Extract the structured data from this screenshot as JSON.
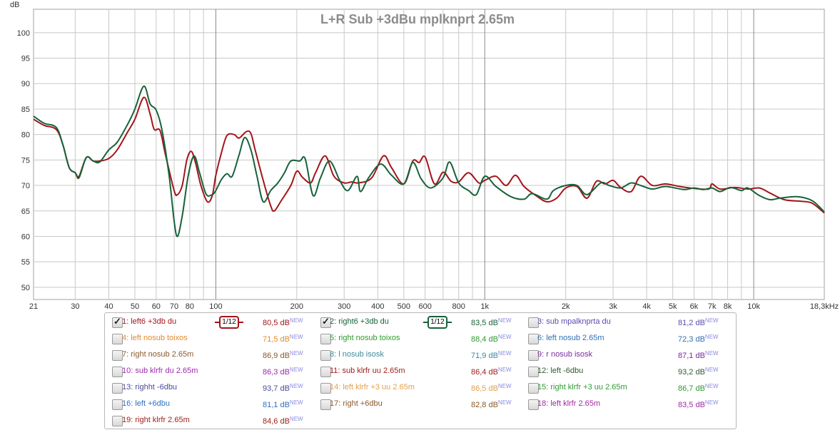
{
  "chart_data": {
    "type": "line",
    "title": "L+R Sub +3dBu mplknprt 2.65m",
    "ylabel": "dB",
    "xlabel": "",
    "xscale": "log",
    "xlim": [
      21,
      18300
    ],
    "ylim": [
      47.6,
      104.6
    ],
    "grid": true,
    "y_ticks": [
      50,
      55,
      60,
      65,
      70,
      75,
      80,
      85,
      90,
      95,
      100
    ],
    "x_ticks": [
      [
        21,
        "21"
      ],
      [
        30,
        "30"
      ],
      [
        40,
        "40"
      ],
      [
        50,
        "50"
      ],
      [
        60,
        "60"
      ],
      [
        70,
        "70"
      ],
      [
        80,
        "80"
      ],
      [
        100,
        "100"
      ],
      [
        200,
        "200"
      ],
      [
        300,
        "300"
      ],
      [
        400,
        "400"
      ],
      [
        500,
        "500"
      ],
      [
        600,
        "600"
      ],
      [
        800,
        "800"
      ],
      [
        1000,
        "1k"
      ],
      [
        2000,
        "2k"
      ],
      [
        3000,
        "3k"
      ],
      [
        4000,
        "4k"
      ],
      [
        5000,
        "5k"
      ],
      [
        6000,
        "6k"
      ],
      [
        7000,
        "7k"
      ],
      [
        8000,
        "8k"
      ],
      [
        10000,
        "10k"
      ],
      [
        18300,
        "18,3kHz"
      ]
    ],
    "series": [
      {
        "name": "1: left6 +3db du",
        "color": "#a3151b",
        "points": [
          [
            21,
            83.0
          ],
          [
            23,
            81.8
          ],
          [
            25.5,
            81.0
          ],
          [
            27,
            78
          ],
          [
            28.5,
            73.5
          ],
          [
            30,
            72.5
          ],
          [
            31,
            71.8
          ],
          [
            33,
            75.5
          ],
          [
            35,
            74.8
          ],
          [
            37,
            74.8
          ],
          [
            40,
            75.3
          ],
          [
            43,
            77
          ],
          [
            47,
            80.5
          ],
          [
            50,
            83
          ],
          [
            54,
            87.3
          ],
          [
            57,
            84
          ],
          [
            59,
            81
          ],
          [
            62,
            80.8
          ],
          [
            65,
            76
          ],
          [
            70,
            69
          ],
          [
            72,
            68.2
          ],
          [
            75,
            70
          ],
          [
            78,
            75
          ],
          [
            81,
            76.7
          ],
          [
            84,
            74.5
          ],
          [
            88,
            70
          ],
          [
            93,
            66.8
          ],
          [
            97,
            68
          ],
          [
            100,
            72
          ],
          [
            105,
            76.5
          ],
          [
            110,
            79.8
          ],
          [
            117,
            80.0
          ],
          [
            122,
            79.3
          ],
          [
            130,
            80.6
          ],
          [
            135,
            80.2
          ],
          [
            140,
            77
          ],
          [
            150,
            71
          ],
          [
            160,
            66
          ],
          [
            165,
            65
          ],
          [
            175,
            67
          ],
          [
            190,
            70
          ],
          [
            200,
            72.8
          ],
          [
            210,
            71.6
          ],
          [
            225,
            70.5
          ],
          [
            235,
            72.5
          ],
          [
            255,
            75.8
          ],
          [
            275,
            71.8
          ],
          [
            300,
            70.5
          ],
          [
            320,
            70.7
          ],
          [
            340,
            70.5
          ],
          [
            380,
            71.5
          ],
          [
            420,
            75.8
          ],
          [
            450,
            73.5
          ],
          [
            500,
            70.3
          ],
          [
            540,
            74.8
          ],
          [
            570,
            74.5
          ],
          [
            600,
            75.6
          ],
          [
            650,
            70.3
          ],
          [
            700,
            72.6
          ],
          [
            750,
            70.8
          ],
          [
            800,
            70.7
          ],
          [
            870,
            72.5
          ],
          [
            950,
            70.5
          ],
          [
            1000,
            71.0
          ],
          [
            1100,
            71.8
          ],
          [
            1200,
            70.0
          ],
          [
            1300,
            72.0
          ],
          [
            1400,
            69.8
          ],
          [
            1550,
            68.0
          ],
          [
            1700,
            66.8
          ],
          [
            1850,
            67.5
          ],
          [
            2000,
            69.5
          ],
          [
            2200,
            69.8
          ],
          [
            2400,
            67.5
          ],
          [
            2600,
            70.8
          ],
          [
            2800,
            70.3
          ],
          [
            3000,
            71
          ],
          [
            3200,
            69.6
          ],
          [
            3500,
            68.8
          ],
          [
            3800,
            71.8
          ],
          [
            4200,
            70
          ],
          [
            4700,
            70.3
          ],
          [
            5300,
            69.8
          ],
          [
            6000,
            69.4
          ],
          [
            6800,
            69.3
          ],
          [
            7000,
            70.3
          ],
          [
            7500,
            69.3
          ],
          [
            8500,
            69.6
          ],
          [
            9500,
            69.3
          ],
          [
            10500,
            69.5
          ],
          [
            11500,
            68.5
          ],
          [
            13000,
            67.2
          ],
          [
            15000,
            66.9
          ],
          [
            16500,
            66.5
          ],
          [
            18300,
            64.6
          ]
        ]
      },
      {
        "name": "2: right6 +3db du",
        "color": "#17623a",
        "points": [
          [
            21,
            83.6
          ],
          [
            23,
            82.2
          ],
          [
            25.5,
            81.4
          ],
          [
            27,
            78
          ],
          [
            28.5,
            73.5
          ],
          [
            30,
            72.5
          ],
          [
            31,
            71.5
          ],
          [
            33,
            75.5
          ],
          [
            35,
            74.8
          ],
          [
            37,
            74.6
          ],
          [
            40,
            77
          ],
          [
            43,
            78.5
          ],
          [
            47,
            82
          ],
          [
            50,
            85
          ],
          [
            54,
            89.5
          ],
          [
            57,
            86
          ],
          [
            60,
            84.8
          ],
          [
            63,
            81
          ],
          [
            67,
            72
          ],
          [
            70,
            63
          ],
          [
            72,
            60.0
          ],
          [
            75,
            64
          ],
          [
            79,
            72
          ],
          [
            83,
            75.8
          ],
          [
            87,
            72.5
          ],
          [
            92,
            68.3
          ],
          [
            97,
            68.2
          ],
          [
            100,
            69
          ],
          [
            105,
            71.2
          ],
          [
            110,
            72.3
          ],
          [
            115,
            71.8
          ],
          [
            122,
            76
          ],
          [
            128,
            79.4
          ],
          [
            135,
            77
          ],
          [
            142,
            72
          ],
          [
            150,
            66.8
          ],
          [
            160,
            69
          ],
          [
            170,
            70.5
          ],
          [
            180,
            72.5
          ],
          [
            190,
            74.8
          ],
          [
            205,
            74.8
          ],
          [
            215,
            75.2
          ],
          [
            230,
            68
          ],
          [
            245,
            71.5
          ],
          [
            265,
            74.8
          ],
          [
            290,
            70.8
          ],
          [
            310,
            69
          ],
          [
            335,
            71.8
          ],
          [
            345,
            68.8
          ],
          [
            370,
            71.5
          ],
          [
            410,
            74.2
          ],
          [
            450,
            72
          ],
          [
            500,
            70.3
          ],
          [
            540,
            74.5
          ],
          [
            580,
            71.3
          ],
          [
            630,
            69.5
          ],
          [
            700,
            71.5
          ],
          [
            740,
            74.6
          ],
          [
            800,
            70.5
          ],
          [
            870,
            69.0
          ],
          [
            930,
            68.2
          ],
          [
            1000,
            71.8
          ],
          [
            1100,
            69.8
          ],
          [
            1250,
            67.8
          ],
          [
            1400,
            67.3
          ],
          [
            1500,
            68.4
          ],
          [
            1700,
            67.3
          ],
          [
            1800,
            69
          ],
          [
            2000,
            70
          ],
          [
            2200,
            70
          ],
          [
            2400,
            68.2
          ],
          [
            2700,
            70.5
          ],
          [
            2900,
            70
          ],
          [
            3200,
            69.5
          ],
          [
            3500,
            70.5
          ],
          [
            3800,
            70
          ],
          [
            4200,
            69.3
          ],
          [
            4700,
            69.8
          ],
          [
            5500,
            69.2
          ],
          [
            6000,
            69.5
          ],
          [
            6500,
            69.2
          ],
          [
            7000,
            69.5
          ],
          [
            7500,
            68.8
          ],
          [
            8200,
            69.6
          ],
          [
            9000,
            69.0
          ],
          [
            9500,
            69.5
          ],
          [
            10500,
            68
          ],
          [
            11500,
            67.2
          ],
          [
            12500,
            67.5
          ],
          [
            14500,
            67.8
          ],
          [
            16500,
            67.0
          ],
          [
            18300,
            64.8
          ]
        ]
      }
    ]
  },
  "legend": [
    {
      "label": "1: left6 +3db du",
      "value": "80,5 dB",
      "new": "NEW",
      "checked": true,
      "smoothing": "1/12",
      "color": "#a3151b"
    },
    {
      "label": "2: right6 +3db du",
      "value": "83,5 dB",
      "new": "NEW",
      "checked": true,
      "smoothing": "1/12",
      "color": "#17623a"
    },
    {
      "label": "3: sub mpalknprta du",
      "value": "81,2 dB",
      "new": "NEW",
      "checked": false,
      "color": "#5a4ab0"
    },
    {
      "label": "4: left nosub toixos",
      "value": "71,5 dB",
      "new": "NEW",
      "checked": false,
      "color": "#e08a30"
    },
    {
      "label": "5: right nosub toixos",
      "value": "88,4 dB",
      "new": "NEW",
      "checked": false,
      "color": "#2f9a2f"
    },
    {
      "label": "6: left nosub 2.65m",
      "value": "72,3 dB",
      "new": "NEW",
      "checked": false,
      "color": "#2f6fb0"
    },
    {
      "label": "7: right nosub 2.65m",
      "value": "86,9 dB",
      "new": "NEW",
      "checked": false,
      "color": "#8a5a2a"
    },
    {
      "label": "8: l nosub isosk",
      "value": "71,9 dB",
      "new": "NEW",
      "checked": false,
      "color": "#3a8a9a"
    },
    {
      "label": "9: r nosub isosk",
      "value": "87,1 dB",
      "new": "NEW",
      "checked": false,
      "color": "#7a2aa0"
    },
    {
      "label": "10: sub klrfr du 2.65m",
      "value": "86,3 dB",
      "new": "NEW",
      "checked": false,
      "color": "#a02ab0"
    },
    {
      "label": "11: sub klrfr uu 2.65m",
      "value": "86,4 dB",
      "new": "NEW",
      "checked": false,
      "color": "#a0201e"
    },
    {
      "label": "12: left -6dbu",
      "value": "93,2 dB",
      "new": "NEW",
      "checked": false,
      "color": "#2f5a30"
    },
    {
      "label": "13: righht -6dbu",
      "value": "93,7 dB",
      "new": "NEW",
      "checked": false,
      "color": "#4a4a9a"
    },
    {
      "label": "14: left klrfr +3 uu 2.65m",
      "value": "86,5 dB",
      "new": "NEW",
      "checked": false,
      "color": "#e0a050"
    },
    {
      "label": "15: right klrfr +3 uu 2.65m",
      "value": "86,7 dB",
      "new": "NEW",
      "checked": false,
      "color": "#2f9a2f"
    },
    {
      "label": "16: left +6dbu",
      "value": "81,1 dB",
      "new": "NEW",
      "checked": false,
      "color": "#2f70c0"
    },
    {
      "label": "17: right +6dbu",
      "value": "82,8 dB",
      "new": "NEW",
      "checked": false,
      "color": "#8a5a2a"
    },
    {
      "label": "18: left klrfr 2.65m",
      "value": "83,5 dB",
      "new": "NEW",
      "checked": false,
      "color": "#a02aa0"
    },
    {
      "label": "19: right klrfr 2.65m",
      "value": "84,6 dB",
      "new": "NEW",
      "checked": false,
      "color": "#a0201e"
    }
  ]
}
